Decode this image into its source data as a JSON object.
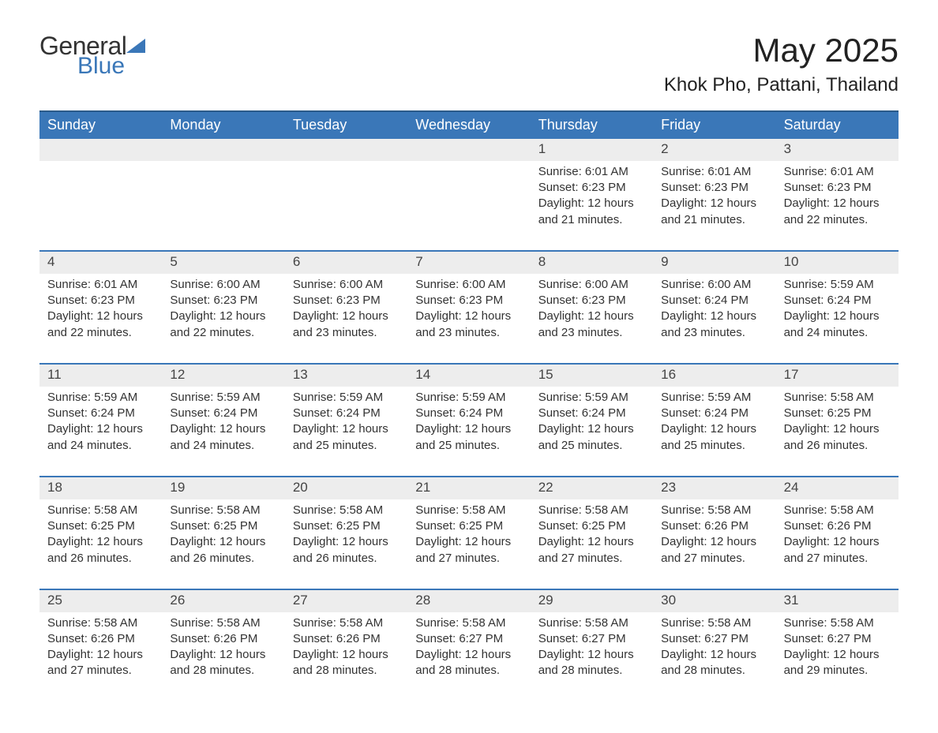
{
  "brand": {
    "word1": "General",
    "word2": "Blue"
  },
  "title": "May 2025",
  "location": "Khok Pho, Pattani, Thailand",
  "colors": {
    "header_bg": "#3a77b8",
    "header_border": "#2a5a8a",
    "row_divider": "#3a77b8",
    "daynum_bg": "#ededed",
    "text": "#333333",
    "brand_accent": "#3a77b8",
    "page_bg": "#ffffff"
  },
  "weekdays": [
    "Sunday",
    "Monday",
    "Tuesday",
    "Wednesday",
    "Thursday",
    "Friday",
    "Saturday"
  ],
  "weeks": [
    [
      null,
      null,
      null,
      null,
      {
        "day": "1",
        "sunrise": "6:01 AM",
        "sunset": "6:23 PM",
        "daylight": "12 hours and 21 minutes."
      },
      {
        "day": "2",
        "sunrise": "6:01 AM",
        "sunset": "6:23 PM",
        "daylight": "12 hours and 21 minutes."
      },
      {
        "day": "3",
        "sunrise": "6:01 AM",
        "sunset": "6:23 PM",
        "daylight": "12 hours and 22 minutes."
      }
    ],
    [
      {
        "day": "4",
        "sunrise": "6:01 AM",
        "sunset": "6:23 PM",
        "daylight": "12 hours and 22 minutes."
      },
      {
        "day": "5",
        "sunrise": "6:00 AM",
        "sunset": "6:23 PM",
        "daylight": "12 hours and 22 minutes."
      },
      {
        "day": "6",
        "sunrise": "6:00 AM",
        "sunset": "6:23 PM",
        "daylight": "12 hours and 23 minutes."
      },
      {
        "day": "7",
        "sunrise": "6:00 AM",
        "sunset": "6:23 PM",
        "daylight": "12 hours and 23 minutes."
      },
      {
        "day": "8",
        "sunrise": "6:00 AM",
        "sunset": "6:23 PM",
        "daylight": "12 hours and 23 minutes."
      },
      {
        "day": "9",
        "sunrise": "6:00 AM",
        "sunset": "6:24 PM",
        "daylight": "12 hours and 23 minutes."
      },
      {
        "day": "10",
        "sunrise": "5:59 AM",
        "sunset": "6:24 PM",
        "daylight": "12 hours and 24 minutes."
      }
    ],
    [
      {
        "day": "11",
        "sunrise": "5:59 AM",
        "sunset": "6:24 PM",
        "daylight": "12 hours and 24 minutes."
      },
      {
        "day": "12",
        "sunrise": "5:59 AM",
        "sunset": "6:24 PM",
        "daylight": "12 hours and 24 minutes."
      },
      {
        "day": "13",
        "sunrise": "5:59 AM",
        "sunset": "6:24 PM",
        "daylight": "12 hours and 25 minutes."
      },
      {
        "day": "14",
        "sunrise": "5:59 AM",
        "sunset": "6:24 PM",
        "daylight": "12 hours and 25 minutes."
      },
      {
        "day": "15",
        "sunrise": "5:59 AM",
        "sunset": "6:24 PM",
        "daylight": "12 hours and 25 minutes."
      },
      {
        "day": "16",
        "sunrise": "5:59 AM",
        "sunset": "6:24 PM",
        "daylight": "12 hours and 25 minutes."
      },
      {
        "day": "17",
        "sunrise": "5:58 AM",
        "sunset": "6:25 PM",
        "daylight": "12 hours and 26 minutes."
      }
    ],
    [
      {
        "day": "18",
        "sunrise": "5:58 AM",
        "sunset": "6:25 PM",
        "daylight": "12 hours and 26 minutes."
      },
      {
        "day": "19",
        "sunrise": "5:58 AM",
        "sunset": "6:25 PM",
        "daylight": "12 hours and 26 minutes."
      },
      {
        "day": "20",
        "sunrise": "5:58 AM",
        "sunset": "6:25 PM",
        "daylight": "12 hours and 26 minutes."
      },
      {
        "day": "21",
        "sunrise": "5:58 AM",
        "sunset": "6:25 PM",
        "daylight": "12 hours and 27 minutes."
      },
      {
        "day": "22",
        "sunrise": "5:58 AM",
        "sunset": "6:25 PM",
        "daylight": "12 hours and 27 minutes."
      },
      {
        "day": "23",
        "sunrise": "5:58 AM",
        "sunset": "6:26 PM",
        "daylight": "12 hours and 27 minutes."
      },
      {
        "day": "24",
        "sunrise": "5:58 AM",
        "sunset": "6:26 PM",
        "daylight": "12 hours and 27 minutes."
      }
    ],
    [
      {
        "day": "25",
        "sunrise": "5:58 AM",
        "sunset": "6:26 PM",
        "daylight": "12 hours and 27 minutes."
      },
      {
        "day": "26",
        "sunrise": "5:58 AM",
        "sunset": "6:26 PM",
        "daylight": "12 hours and 28 minutes."
      },
      {
        "day": "27",
        "sunrise": "5:58 AM",
        "sunset": "6:26 PM",
        "daylight": "12 hours and 28 minutes."
      },
      {
        "day": "28",
        "sunrise": "5:58 AM",
        "sunset": "6:27 PM",
        "daylight": "12 hours and 28 minutes."
      },
      {
        "day": "29",
        "sunrise": "5:58 AM",
        "sunset": "6:27 PM",
        "daylight": "12 hours and 28 minutes."
      },
      {
        "day": "30",
        "sunrise": "5:58 AM",
        "sunset": "6:27 PM",
        "daylight": "12 hours and 28 minutes."
      },
      {
        "day": "31",
        "sunrise": "5:58 AM",
        "sunset": "6:27 PM",
        "daylight": "12 hours and 29 minutes."
      }
    ]
  ],
  "labels": {
    "sunrise": "Sunrise: ",
    "sunset": "Sunset: ",
    "daylight": "Daylight: "
  }
}
